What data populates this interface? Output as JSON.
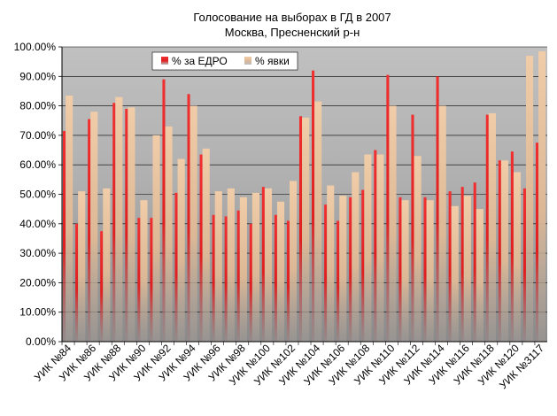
{
  "chart_data": {
    "type": "bar",
    "title": "Голосование на выборах в ГД в 2007",
    "subtitle": "Москва, Пресненский р-н",
    "xlabel": "",
    "ylabel": "",
    "ylim": [
      0,
      100
    ],
    "yticks": [
      "0.00%",
      "10.00%",
      "20.00%",
      "30.00%",
      "40.00%",
      "50.00%",
      "60.00%",
      "70.00%",
      "80.00%",
      "90.00%",
      "100.00%"
    ],
    "grid": true,
    "legend_position": "top-left",
    "categories": [
      "УИК №84",
      "",
      "УИК №86",
      "",
      "УИК №88",
      "",
      "УИК №90",
      "",
      "УИК №92",
      "",
      "УИК №94",
      "",
      "УИК №96",
      "",
      "УИК №98",
      "",
      "УИК №100",
      "",
      "УИК №102",
      "",
      "УИК №104",
      "",
      "УИК №106",
      "",
      "УИК №108",
      "",
      "УИК №110",
      "",
      "УИК №112",
      "",
      "УИК №114",
      "",
      "УИК №116",
      "",
      "УИК №118",
      "",
      "УИК №120",
      "",
      "УИК №3117"
    ],
    "series": [
      {
        "name": "% за ЕДРО",
        "color": "#e8282a",
        "values": [
          71.5,
          40,
          75.5,
          37.5,
          81,
          79,
          42,
          42,
          89,
          50.5,
          84,
          63.5,
          43,
          42.5,
          44.5,
          40,
          52.5,
          43,
          41,
          76.5,
          92,
          46.5,
          41,
          49,
          51.5,
          65,
          90.5,
          49,
          77,
          49,
          90,
          51,
          52.5,
          54,
          77,
          61.5,
          64.5,
          52,
          67.5
        ]
      },
      {
        "name": "% явки",
        "color": "#e8c2a0",
        "values": [
          83.5,
          51,
          78,
          52,
          83,
          79.5,
          48,
          70,
          73,
          62,
          80,
          65.5,
          51,
          52,
          49,
          50.5,
          52,
          47.5,
          54.5,
          76,
          81.5,
          53,
          49.5,
          57.5,
          63.5,
          63.5,
          80,
          48,
          63,
          48,
          80,
          46,
          49.5,
          45,
          77.5,
          61.5,
          57.5,
          97,
          98.5
        ]
      }
    ]
  }
}
